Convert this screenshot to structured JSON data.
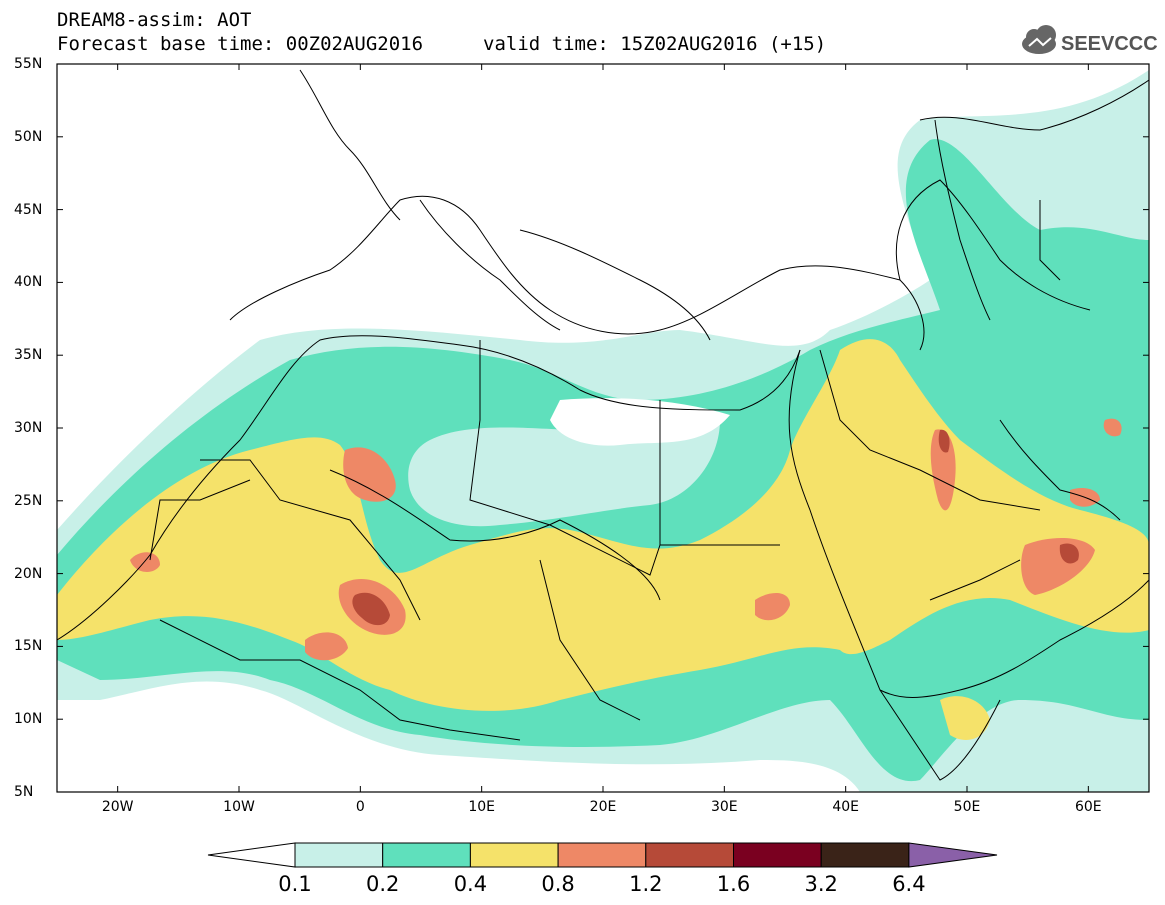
{
  "header": {
    "title": "DREAM8-assim: AOT",
    "base_time": "Forecast base time: 00Z02AUG2016",
    "valid_time": "valid time: 15Z02AUG2016 (+15)",
    "logo_text": "SEEVCCC"
  },
  "map": {
    "lat_labels": [
      "55N",
      "50N",
      "45N",
      "40N",
      "35N",
      "30N",
      "25N",
      "20N",
      "15N",
      "10N",
      "5N"
    ],
    "lon_labels": [
      "20W",
      "10W",
      "0",
      "10E",
      "20E",
      "30E",
      "40E",
      "50E",
      "60E"
    ],
    "lon_range": [
      -25,
      65
    ],
    "lat_range": [
      5,
      55
    ]
  },
  "colorbar": {
    "labels": [
      "0.1",
      "0.2",
      "0.4",
      "0.8",
      "1.2",
      "1.6",
      "3.2",
      "6.4"
    ],
    "colors": [
      "#ffffff",
      "#c8f0e8",
      "#5fe0bc",
      "#f5e26a",
      "#ee8866",
      "#b64a38",
      "#7a0020",
      "#3a2318",
      "#8a60a8"
    ]
  }
}
